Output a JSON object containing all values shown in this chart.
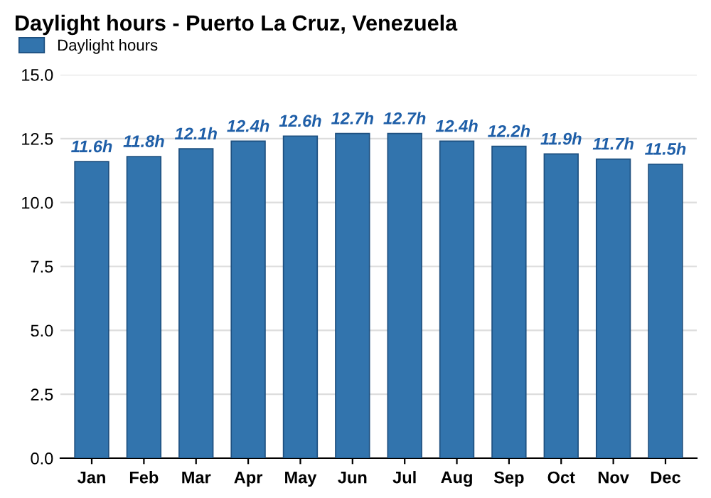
{
  "chart_data": {
    "type": "bar",
    "title": "Daylight hours - Puerto La Cruz, Venezuela",
    "categories": [
      "Jan",
      "Feb",
      "Mar",
      "Apr",
      "May",
      "Jun",
      "Jul",
      "Aug",
      "Sep",
      "Oct",
      "Nov",
      "Dec"
    ],
    "series": [
      {
        "name": "Daylight hours",
        "color": "#3274ad",
        "values": [
          11.6,
          11.8,
          12.1,
          12.4,
          12.6,
          12.7,
          12.7,
          12.4,
          12.2,
          11.9,
          11.7,
          11.5
        ],
        "value_labels": [
          "11.6h",
          "11.8h",
          "12.1h",
          "12.4h",
          "12.6h",
          "12.7h",
          "12.7h",
          "12.4h",
          "12.2h",
          "11.9h",
          "11.7h",
          "11.5h"
        ]
      }
    ],
    "ylim": [
      0,
      15
    ],
    "yticks": [
      {
        "value": 0,
        "label": "0.0"
      },
      {
        "value": 2.5,
        "label": "2.5"
      },
      {
        "value": 5,
        "label": "5.0"
      },
      {
        "value": 7.5,
        "label": "7.5"
      },
      {
        "value": 10,
        "label": "10.0"
      },
      {
        "value": 12.5,
        "label": "12.5"
      },
      {
        "value": 15,
        "label": "15.0"
      }
    ],
    "grid": "y",
    "legend": "top left"
  }
}
